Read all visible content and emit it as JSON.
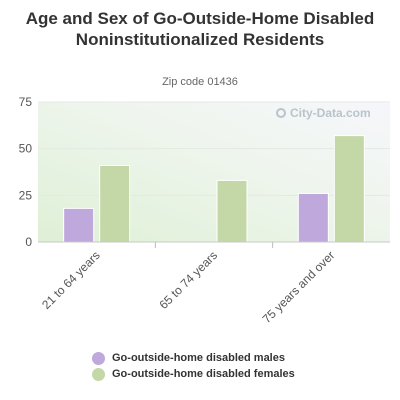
{
  "chart_data": {
    "type": "bar",
    "title": "Age and Sex of Go-Outside-Home Disabled Noninstitutionalized Residents",
    "subtitle": "Zip code 01436",
    "categories": [
      "21 to 64 years",
      "65 to 74 years",
      "75 years and over"
    ],
    "series": [
      {
        "name": "Go-outside-home disabled males",
        "values": [
          18,
          0,
          26
        ],
        "color": "#bfa8dc"
      },
      {
        "name": "Go-outside-home disabled females",
        "values": [
          41,
          33,
          57
        ],
        "color": "#c3d8a6"
      }
    ],
    "ylim": [
      0,
      75
    ],
    "yticks": [
      0,
      25,
      50,
      75
    ],
    "grid": true,
    "legend_position": "bottom"
  },
  "watermark": "City-Data.com"
}
